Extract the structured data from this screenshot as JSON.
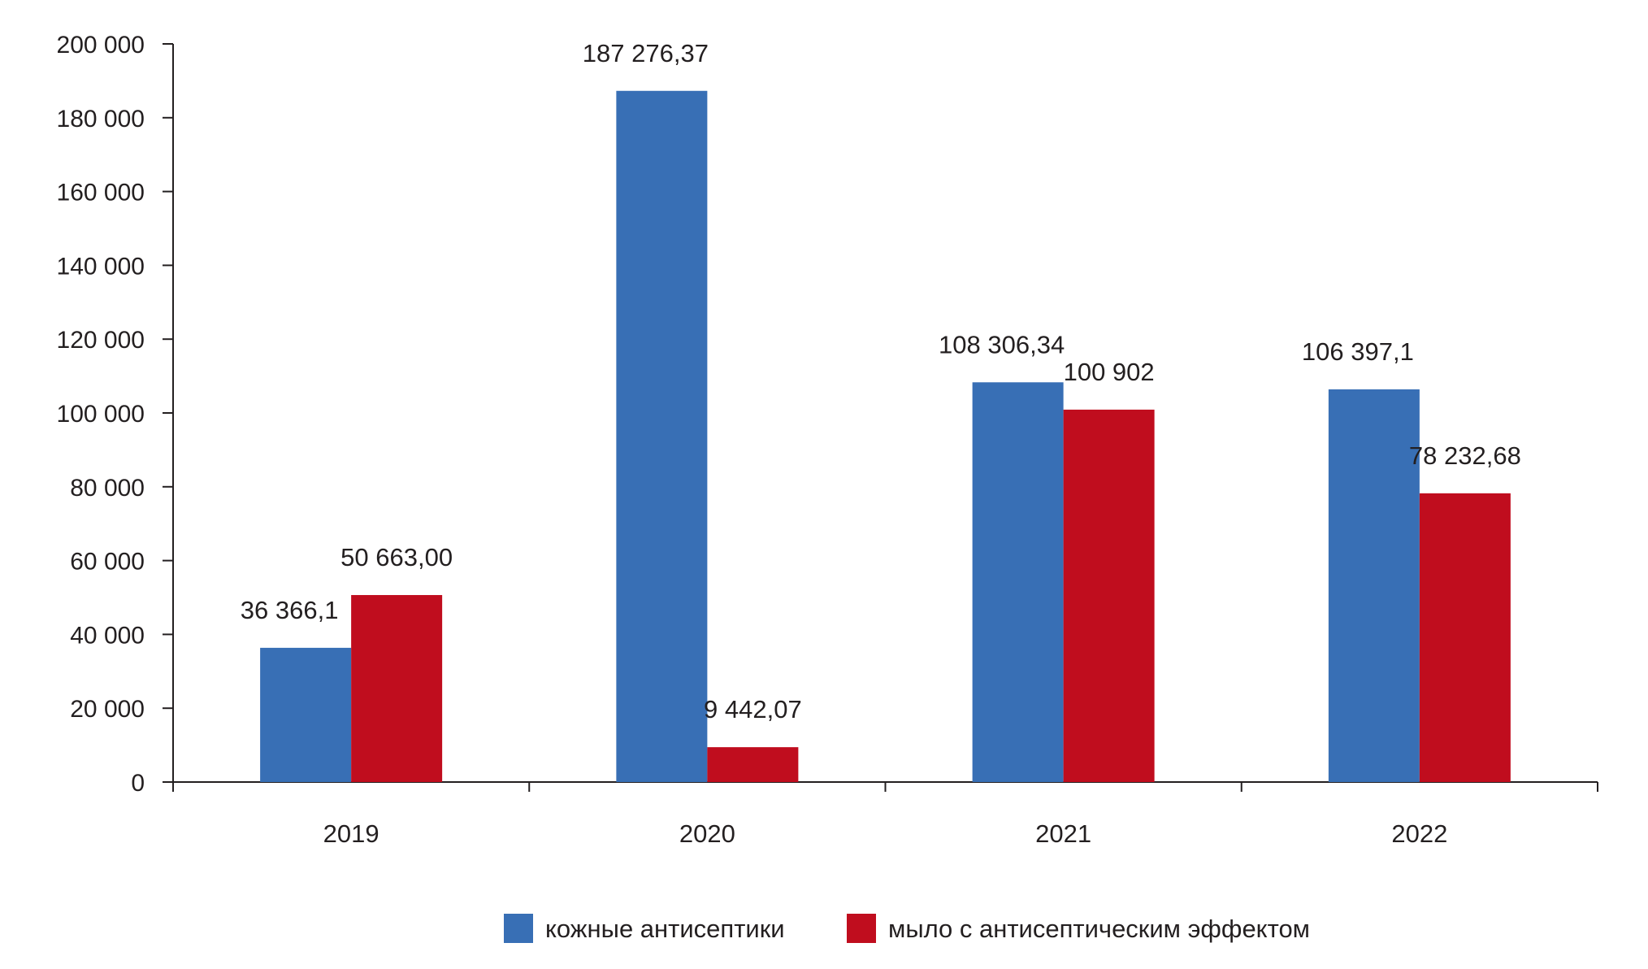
{
  "chart_data": {
    "type": "bar",
    "categories": [
      "2019",
      "2020",
      "2021",
      "2022"
    ],
    "series": [
      {
        "name": "кожные антисептики",
        "color": "#386fb5",
        "values": [
          36366.1,
          187276.37,
          108306.34,
          106397.1
        ],
        "labels": [
          "36 366,1",
          "187 276,37",
          "108 306,34",
          "106 397,1"
        ]
      },
      {
        "name": "мыло с антисептическим эффектом",
        "color": "#c00d1e",
        "values": [
          50663.0,
          9442.07,
          100902,
          78232.68
        ],
        "labels": [
          "50 663,00",
          "9 442,07",
          "100 902",
          "78 232,68"
        ]
      }
    ],
    "yticks": [
      "0",
      "20 000",
      "40 000",
      "60 000",
      "80 000",
      "100 000",
      "120 000",
      "140 000",
      "160 000",
      "180 000",
      "200 000"
    ],
    "ylim": [
      0,
      200000
    ],
    "title": "",
    "xlabel": "",
    "ylabel": "",
    "legend_position": "bottom-center",
    "grid": false
  }
}
